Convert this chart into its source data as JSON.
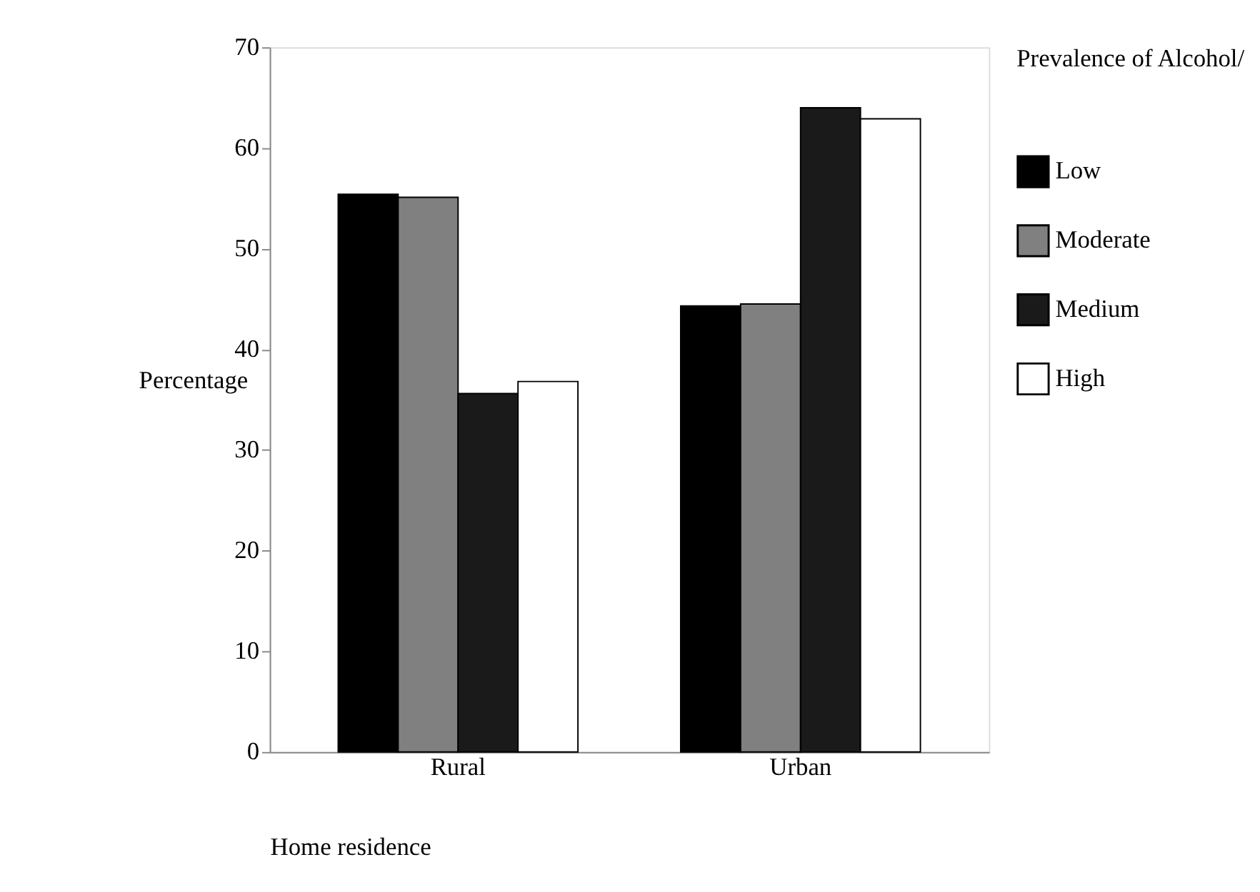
{
  "chart_data": {
    "type": "bar",
    "xlabel": "Home residence",
    "ylabel": "Percentage",
    "legend_title": "Prevalence of Alcohol/",
    "categories": [
      "Rural",
      "Urban"
    ],
    "series": [
      {
        "name": "Low",
        "color": "#000000",
        "values": [
          55.4,
          44.3
        ]
      },
      {
        "name": "Moderate",
        "color": "#808080",
        "values": [
          55.1,
          44.5
        ]
      },
      {
        "name": "Medium",
        "color": "#1a1a1a",
        "values": [
          35.6,
          64.0
        ]
      },
      {
        "name": "High",
        "color": "#ffffff",
        "values": [
          36.8,
          62.9
        ]
      }
    ],
    "ylim": [
      0,
      70
    ],
    "yticks": [
      0,
      10,
      20,
      30,
      40,
      50,
      60,
      70
    ],
    "grid": false,
    "legend": "right"
  }
}
